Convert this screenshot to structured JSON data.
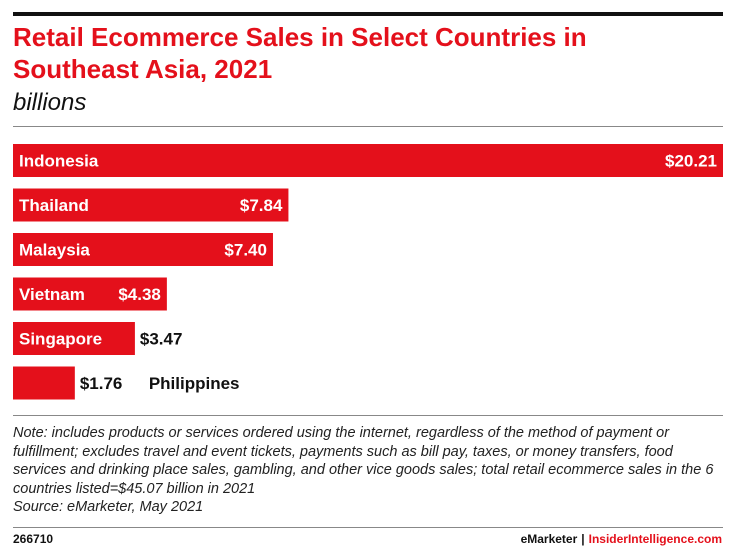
{
  "header": {
    "title": "Retail Ecommerce Sales in Select Countries in Southeast Asia, 2021",
    "subtitle": "billions"
  },
  "chart_data": {
    "type": "bar",
    "orientation": "horizontal",
    "categories": [
      "Indonesia",
      "Thailand",
      "Malaysia",
      "Vietnam",
      "Singapore",
      "Philippines"
    ],
    "values": [
      20.21,
      7.84,
      7.4,
      4.38,
      3.47,
      1.76
    ],
    "value_labels": [
      "$20.21",
      "$7.84",
      "$7.40",
      "$4.38",
      "$3.47",
      "$1.76"
    ],
    "title": "Retail Ecommerce Sales in Select Countries in Southeast Asia, 2021",
    "unit": "billions",
    "bar_color": "#e4101b",
    "grid": false,
    "legend": "none"
  },
  "footer": {
    "note": "Note: includes products or services ordered using the internet, regardless of the method of payment or fulfillment; excludes travel and event tickets, payments such as bill pay, taxes, or money transfers, food services and drinking place sales, gambling, and other vice goods sales; total retail ecommerce sales in the 6 countries listed=$45.07 billion in 2021",
    "source": "Source: eMarketer, May 2021",
    "chart_id": "266710",
    "brand_left": "eMarketer",
    "brand_sep": "|",
    "brand_right": "InsiderIntelligence.com"
  }
}
